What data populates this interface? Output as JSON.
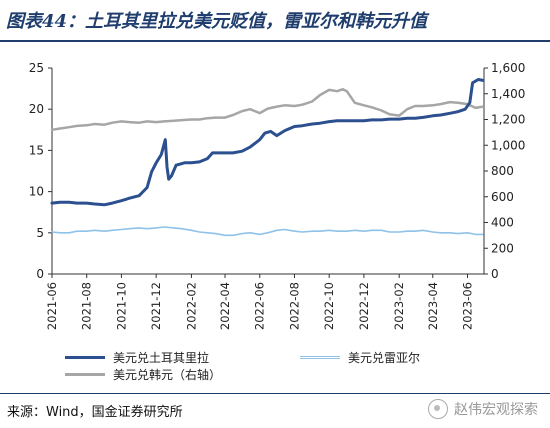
{
  "header": {
    "title": "图表44：土耳其里拉兑美元贬值，雷亚尔和韩元升值"
  },
  "chart_data": {
    "type": "line",
    "x_ticks": [
      "2021-06",
      "2021-08",
      "2021-10",
      "2021-12",
      "2022-02",
      "2022-04",
      "2022-06",
      "2022-08",
      "2022-10",
      "2022-12",
      "2023-02",
      "2023-04",
      "2023-06"
    ],
    "x_range": [
      "2021-06-01",
      "2023-06-30"
    ],
    "y_left": {
      "ticks": [
        "0",
        "5",
        "10",
        "15",
        "20",
        "25"
      ],
      "ylim": [
        0,
        25
      ]
    },
    "y_right": {
      "ticks": [
        "0",
        "200",
        "400",
        "600",
        "800",
        "1,000",
        "1,200",
        "1,400",
        "1,600"
      ],
      "ylim": [
        0,
        1600
      ]
    },
    "grid": false,
    "legend_position": "bottom",
    "series": [
      {
        "name": "美元兑土耳其里拉",
        "axis": "left",
        "color": "#2b4f8f",
        "points": [
          [
            "2021-06-01",
            8.6
          ],
          [
            "2021-06-15",
            8.7
          ],
          [
            "2021-07-01",
            8.7
          ],
          [
            "2021-07-15",
            8.6
          ],
          [
            "2021-08-01",
            8.6
          ],
          [
            "2021-08-15",
            8.5
          ],
          [
            "2021-09-01",
            8.4
          ],
          [
            "2021-09-15",
            8.6
          ],
          [
            "2021-10-01",
            8.9
          ],
          [
            "2021-10-15",
            9.2
          ],
          [
            "2021-11-01",
            9.5
          ],
          [
            "2021-11-15",
            10.5
          ],
          [
            "2021-11-23",
            12.4
          ],
          [
            "2021-12-01",
            13.5
          ],
          [
            "2021-12-10",
            14.5
          ],
          [
            "2021-12-17",
            16.3
          ],
          [
            "2021-12-20",
            13.0
          ],
          [
            "2021-12-23",
            11.5
          ],
          [
            "2021-12-28",
            11.9
          ],
          [
            "2022-01-05",
            13.2
          ],
          [
            "2022-01-20",
            13.5
          ],
          [
            "2022-02-01",
            13.5
          ],
          [
            "2022-02-15",
            13.6
          ],
          [
            "2022-03-01",
            14.0
          ],
          [
            "2022-03-10",
            14.7
          ],
          [
            "2022-04-01",
            14.7
          ],
          [
            "2022-04-15",
            14.7
          ],
          [
            "2022-05-01",
            14.9
          ],
          [
            "2022-05-15",
            15.4
          ],
          [
            "2022-06-01",
            16.3
          ],
          [
            "2022-06-10",
            17.1
          ],
          [
            "2022-06-20",
            17.3
          ],
          [
            "2022-07-01",
            16.8
          ],
          [
            "2022-07-15",
            17.4
          ],
          [
            "2022-08-01",
            17.9
          ],
          [
            "2022-08-15",
            18.0
          ],
          [
            "2022-09-01",
            18.2
          ],
          [
            "2022-09-15",
            18.3
          ],
          [
            "2022-10-01",
            18.5
          ],
          [
            "2022-10-15",
            18.6
          ],
          [
            "2022-11-01",
            18.6
          ],
          [
            "2022-11-15",
            18.6
          ],
          [
            "2022-12-01",
            18.6
          ],
          [
            "2022-12-15",
            18.7
          ],
          [
            "2023-01-01",
            18.7
          ],
          [
            "2023-01-15",
            18.8
          ],
          [
            "2023-02-01",
            18.8
          ],
          [
            "2023-02-15",
            18.9
          ],
          [
            "2023-03-01",
            18.9
          ],
          [
            "2023-03-15",
            19.0
          ],
          [
            "2023-04-01",
            19.2
          ],
          [
            "2023-04-15",
            19.3
          ],
          [
            "2023-05-01",
            19.5
          ],
          [
            "2023-05-15",
            19.7
          ],
          [
            "2023-05-28",
            20.0
          ],
          [
            "2023-06-05",
            20.8
          ],
          [
            "2023-06-10",
            23.2
          ],
          [
            "2023-06-20",
            23.6
          ],
          [
            "2023-06-28",
            23.5
          ]
        ]
      },
      {
        "name": "美元兑雷亚尔",
        "axis": "left",
        "color": "#8ec2e8",
        "points": [
          [
            "2021-06-01",
            5.1
          ],
          [
            "2021-06-15",
            5.0
          ],
          [
            "2021-07-01",
            5.0
          ],
          [
            "2021-07-15",
            5.2
          ],
          [
            "2021-08-01",
            5.2
          ],
          [
            "2021-08-15",
            5.3
          ],
          [
            "2021-09-01",
            5.2
          ],
          [
            "2021-09-15",
            5.3
          ],
          [
            "2021-10-01",
            5.4
          ],
          [
            "2021-10-15",
            5.5
          ],
          [
            "2021-11-01",
            5.6
          ],
          [
            "2021-11-15",
            5.5
          ],
          [
            "2021-12-01",
            5.6
          ],
          [
            "2021-12-15",
            5.7
          ],
          [
            "2022-01-01",
            5.6
          ],
          [
            "2022-01-15",
            5.5
          ],
          [
            "2022-02-01",
            5.3
          ],
          [
            "2022-02-15",
            5.1
          ],
          [
            "2022-03-01",
            5.0
          ],
          [
            "2022-03-15",
            4.9
          ],
          [
            "2022-04-01",
            4.7
          ],
          [
            "2022-04-15",
            4.7
          ],
          [
            "2022-05-01",
            4.9
          ],
          [
            "2022-05-15",
            5.0
          ],
          [
            "2022-06-01",
            4.8
          ],
          [
            "2022-06-15",
            5.0
          ],
          [
            "2022-07-01",
            5.3
          ],
          [
            "2022-07-15",
            5.4
          ],
          [
            "2022-08-01",
            5.2
          ],
          [
            "2022-08-15",
            5.1
          ],
          [
            "2022-09-01",
            5.2
          ],
          [
            "2022-09-15",
            5.2
          ],
          [
            "2022-10-01",
            5.3
          ],
          [
            "2022-10-15",
            5.2
          ],
          [
            "2022-11-01",
            5.2
          ],
          [
            "2022-11-15",
            5.3
          ],
          [
            "2022-12-01",
            5.2
          ],
          [
            "2022-12-15",
            5.3
          ],
          [
            "2023-01-01",
            5.3
          ],
          [
            "2023-01-15",
            5.1
          ],
          [
            "2023-02-01",
            5.1
          ],
          [
            "2023-02-15",
            5.2
          ],
          [
            "2023-03-01",
            5.2
          ],
          [
            "2023-03-15",
            5.3
          ],
          [
            "2023-04-01",
            5.1
          ],
          [
            "2023-04-15",
            5.0
          ],
          [
            "2023-05-01",
            5.0
          ],
          [
            "2023-05-15",
            4.9
          ],
          [
            "2023-06-01",
            5.0
          ],
          [
            "2023-06-15",
            4.8
          ],
          [
            "2023-06-28",
            4.8
          ]
        ]
      },
      {
        "name": "美元兑韩元（右轴）",
        "axis": "right",
        "color": "#a6a6a6",
        "points": [
          [
            "2021-06-01",
            1120
          ],
          [
            "2021-06-15",
            1130
          ],
          [
            "2021-07-01",
            1140
          ],
          [
            "2021-07-15",
            1150
          ],
          [
            "2021-08-01",
            1155
          ],
          [
            "2021-08-15",
            1165
          ],
          [
            "2021-09-01",
            1160
          ],
          [
            "2021-09-15",
            1175
          ],
          [
            "2021-10-01",
            1185
          ],
          [
            "2021-10-15",
            1180
          ],
          [
            "2021-11-01",
            1175
          ],
          [
            "2021-11-15",
            1185
          ],
          [
            "2021-12-01",
            1180
          ],
          [
            "2021-12-15",
            1185
          ],
          [
            "2022-01-01",
            1190
          ],
          [
            "2022-01-15",
            1195
          ],
          [
            "2022-02-01",
            1200
          ],
          [
            "2022-02-15",
            1200
          ],
          [
            "2022-03-01",
            1210
          ],
          [
            "2022-03-15",
            1215
          ],
          [
            "2022-04-01",
            1215
          ],
          [
            "2022-04-15",
            1235
          ],
          [
            "2022-05-01",
            1265
          ],
          [
            "2022-05-15",
            1280
          ],
          [
            "2022-06-01",
            1250
          ],
          [
            "2022-06-15",
            1285
          ],
          [
            "2022-07-01",
            1300
          ],
          [
            "2022-07-15",
            1310
          ],
          [
            "2022-08-01",
            1305
          ],
          [
            "2022-08-15",
            1315
          ],
          [
            "2022-09-01",
            1340
          ],
          [
            "2022-09-15",
            1390
          ],
          [
            "2022-10-01",
            1430
          ],
          [
            "2022-10-15",
            1420
          ],
          [
            "2022-10-25",
            1435
          ],
          [
            "2022-11-01",
            1420
          ],
          [
            "2022-11-15",
            1330
          ],
          [
            "2022-12-01",
            1310
          ],
          [
            "2022-12-15",
            1295
          ],
          [
            "2023-01-01",
            1270
          ],
          [
            "2023-01-15",
            1240
          ],
          [
            "2023-02-01",
            1230
          ],
          [
            "2023-02-15",
            1280
          ],
          [
            "2023-03-01",
            1305
          ],
          [
            "2023-03-15",
            1305
          ],
          [
            "2023-04-01",
            1310
          ],
          [
            "2023-04-15",
            1320
          ],
          [
            "2023-05-01",
            1335
          ],
          [
            "2023-05-15",
            1330
          ],
          [
            "2023-06-01",
            1320
          ],
          [
            "2023-06-15",
            1290
          ],
          [
            "2023-06-28",
            1300
          ]
        ]
      }
    ]
  },
  "legend": {
    "try_label": "美元兑土耳其里拉",
    "brl_label": "美元兑雷亚尔",
    "krw_label": "美元兑韩元（右轴）"
  },
  "footer": {
    "source": "来源：Wind，国金证券研究所",
    "watermark": "赵伟宏观探索"
  }
}
